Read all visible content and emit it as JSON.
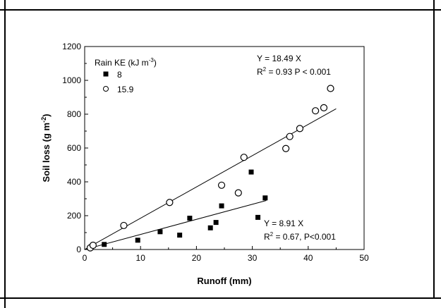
{
  "chart_data": {
    "type": "scatter",
    "xlabel": "Runoff  (mm)",
    "ylabel": "Soil loss  (g m",
    "ylabel_sup": "-2",
    "ylabel_close": ")",
    "xlim": [
      0,
      50
    ],
    "ylim": [
      0,
      1200
    ],
    "x_ticks": [
      0,
      10,
      20,
      30,
      40,
      50
    ],
    "y_ticks": [
      0,
      200,
      400,
      600,
      800,
      1000,
      1200
    ],
    "grid": false,
    "legend": {
      "title": "Rain KE  (kJ m",
      "title_sup": "-3",
      "title_close": ")",
      "position": "top-left"
    },
    "series": [
      {
        "name": "8",
        "marker": "filled-square",
        "x": [
          1.0,
          3.5,
          9.5,
          13.5,
          17.0,
          18.8,
          22.5,
          23.5,
          24.5,
          29.8,
          31.0,
          32.3
        ],
        "y": [
          10,
          30,
          55,
          105,
          85,
          185,
          128,
          160,
          258,
          458,
          190,
          305
        ],
        "fit": {
          "slope": 8.91,
          "x_range": [
            0,
            32.5
          ],
          "equation": "Y = 8.91 X",
          "r2_prefix": "R",
          "r2_sup": "2",
          "r2_rest": " = 0.67,  P<0.001"
        }
      },
      {
        "name": "15.9",
        "marker": "open-circle",
        "x": [
          1.0,
          1.5,
          7.0,
          15.2,
          24.5,
          27.5,
          28.5,
          36.0,
          36.7,
          38.5,
          41.3,
          42.8,
          44.0
        ],
        "y": [
          10,
          25,
          142,
          278,
          380,
          335,
          545,
          597,
          668,
          715,
          820,
          838,
          952
        ],
        "fit": {
          "slope": 18.49,
          "x_range": [
            0,
            45
          ],
          "equation": "Y = 18.49 X",
          "r2_prefix": "R",
          "r2_sup": "2",
          "r2_rest": " = 0.93   P < 0.001"
        }
      }
    ]
  }
}
